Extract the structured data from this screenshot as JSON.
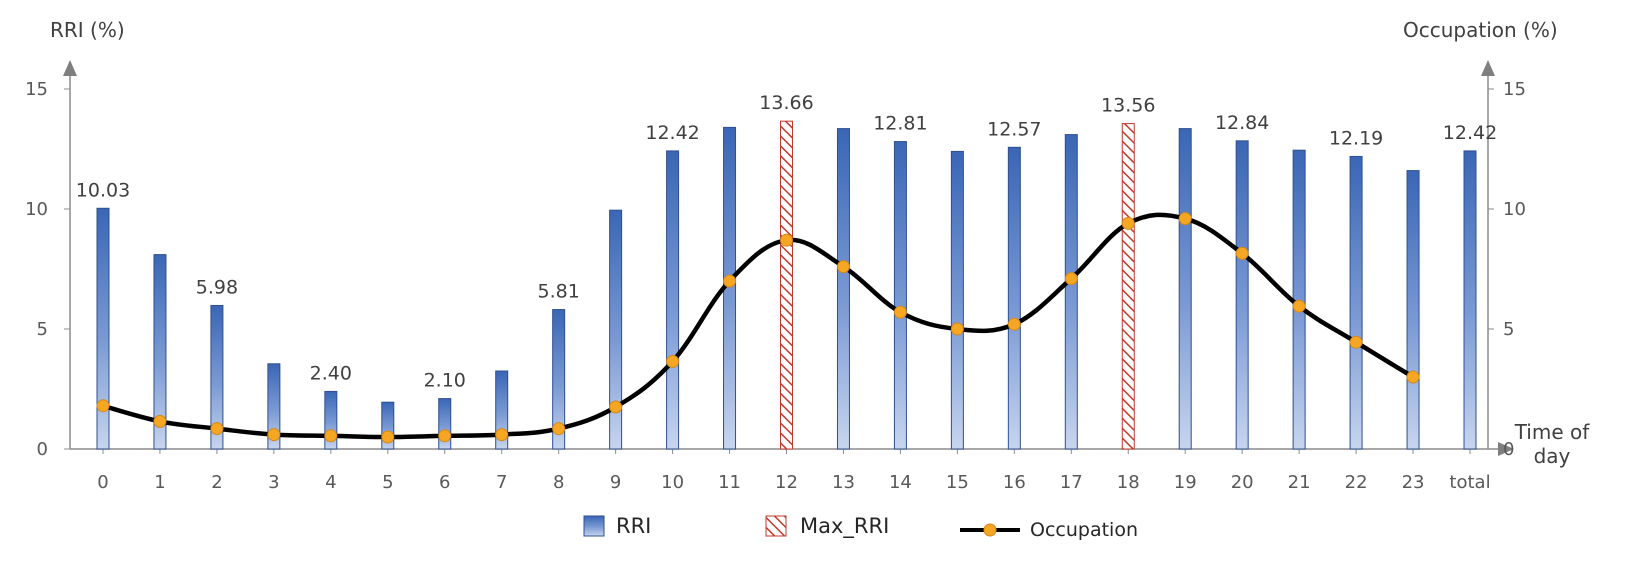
{
  "chart_data": {
    "type": "bar",
    "x_title": "Time of\nday",
    "y_left_title": "RRI (%)",
    "y_right_title": "Occupation (%)",
    "y_left_ticks": [
      "0",
      "5",
      "10",
      "15"
    ],
    "y_right_ticks": [
      "0",
      "5",
      "10",
      "15"
    ],
    "ylim": [
      0,
      15
    ],
    "categories": [
      "0",
      "1",
      "2",
      "3",
      "4",
      "5",
      "6",
      "7",
      "8",
      "9",
      "10",
      "11",
      "12",
      "13",
      "14",
      "15",
      "16",
      "17",
      "18",
      "19",
      "20",
      "21",
      "22",
      "23",
      "total"
    ],
    "series": [
      {
        "name": "RRI",
        "kind": "bar",
        "values": [
          10.03,
          8.1,
          5.98,
          3.55,
          2.4,
          1.95,
          2.1,
          3.25,
          5.81,
          9.95,
          12.42,
          13.4,
          13.66,
          13.35,
          12.81,
          12.4,
          12.57,
          13.1,
          13.56,
          13.35,
          12.84,
          12.45,
          12.19,
          11.6,
          12.42
        ],
        "color": "#4472c4"
      },
      {
        "name": "Max_RRI",
        "kind": "bar-hatched",
        "categories": [
          "12",
          "18"
        ],
        "color": "#c0392b"
      },
      {
        "name": "Occupation",
        "kind": "line",
        "values": [
          1.8,
          1.15,
          0.85,
          0.6,
          0.55,
          0.5,
          0.55,
          0.6,
          0.85,
          1.75,
          3.65,
          7.0,
          8.7,
          7.6,
          5.7,
          5.0,
          5.2,
          7.1,
          9.4,
          9.6,
          8.15,
          5.95,
          4.45,
          3.0,
          null
        ],
        "color": "#000000",
        "marker_color": "#f5a623"
      }
    ],
    "data_labels": [
      {
        "category": "0",
        "text": "10.03"
      },
      {
        "category": "2",
        "text": "5.98"
      },
      {
        "category": "4",
        "text": "2.40"
      },
      {
        "category": "6",
        "text": "2.10"
      },
      {
        "category": "8",
        "text": "5.81"
      },
      {
        "category": "10",
        "text": "12.42"
      },
      {
        "category": "12",
        "text": "13.66"
      },
      {
        "category": "14",
        "text": "12.81"
      },
      {
        "category": "16",
        "text": "12.57"
      },
      {
        "category": "18",
        "text": "13.56"
      },
      {
        "category": "20",
        "text": "12.84"
      },
      {
        "category": "22",
        "text": "12.19"
      },
      {
        "category": "total",
        "text": "12.42"
      }
    ],
    "legend": {
      "position": "bottom",
      "items": [
        "RRI",
        "Max_RRI",
        "Occupation"
      ]
    },
    "grid": false
  }
}
